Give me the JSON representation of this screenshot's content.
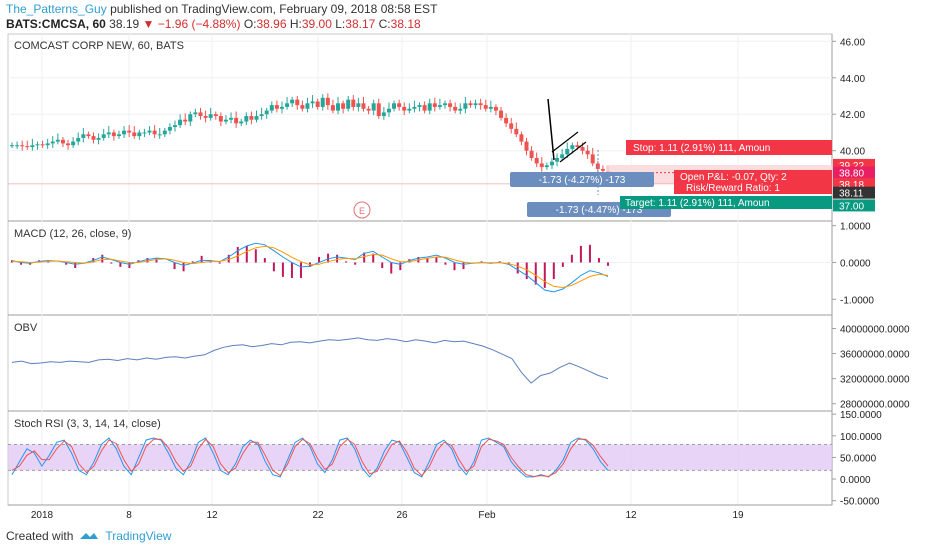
{
  "header": {
    "author": "The_Patterns_Guy",
    "published": "published on TradingView.com, February 09, 2018 08:58 EST",
    "symbol": "BATS:CMCSA, 60",
    "last": "38.19",
    "change": "−1.96 (−4.88%)",
    "open_label": "O:",
    "open": "38.96",
    "high_label": "H:",
    "high": "39.00",
    "low_label": "L:",
    "low": "38.17",
    "close_label": "C:",
    "close": "38.18"
  },
  "footer": {
    "created_with": "Created with",
    "brand": "TradingView"
  },
  "colors": {
    "up": "#26a69a",
    "down": "#ef5350",
    "macd": "#2196f3",
    "signal": "#ff9800",
    "obv": "#5b7fbf",
    "stoch_k": "#2196f3",
    "stoch_d": "#ef5350",
    "stoch_band": "#e1c9f5",
    "stop": "#f23645",
    "target": "#089981",
    "label_blue": "#6c8ebf"
  },
  "chart_data": [
    {
      "type": "candlestick",
      "title": "COMCAST CORP NEW, 60, BATS",
      "ylim": [
        36.2,
        46.4
      ],
      "yticks": [
        "46.00",
        "44.00",
        "42.00",
        "40.00"
      ],
      "x_ticks": [
        "2018",
        "8",
        "12",
        "22",
        "26",
        "Feb",
        "12",
        "19"
      ],
      "close_path": [
        40.3,
        40.3,
        40.25,
        40.2,
        40.3,
        40.35,
        40.3,
        40.4,
        40.5,
        40.6,
        40.4,
        40.3,
        40.5,
        40.7,
        40.9,
        40.8,
        40.6,
        40.7,
        40.9,
        41.0,
        40.8,
        40.9,
        41.1,
        41.0,
        40.8,
        41.0,
        41.0,
        41.1,
        40.9,
        40.9,
        41.1,
        41.3,
        41.4,
        41.7,
        41.6,
        42.0,
        42.1,
        41.9,
        41.8,
        42.0,
        41.9,
        41.6,
        41.7,
        41.8,
        41.5,
        41.6,
        41.9,
        41.7,
        41.9,
        42.0,
        42.2,
        42.5,
        42.3,
        42.4,
        42.6,
        42.8,
        42.5,
        42.3,
        42.6,
        42.7,
        42.4,
        42.9,
        42.5,
        42.2,
        42.6,
        42.3,
        42.8,
        42.4,
        42.6,
        42.3,
        42.2,
        42.6,
        41.9,
        42.1,
        42.3,
        42.6,
        42.4,
        42.2,
        42.3,
        42.4,
        42.5,
        42.2,
        42.6,
        42.4,
        42.5,
        42.6,
        42.4,
        42.2,
        42.3,
        42.6,
        42.5,
        42.6,
        42.5,
        42.3,
        42.4,
        42.2,
        41.8,
        41.5,
        41.2,
        40.9,
        40.5,
        40.0,
        39.6,
        39.3,
        39.1,
        39.2,
        39.4,
        39.6,
        39.8,
        40.1,
        40.3,
        40.2,
        40.0,
        39.8,
        39.3,
        39.0,
        38.9,
        38.4
      ],
      "annotations": {
        "stop": "Stop: 1.11 (2.91%) 111, Amoun",
        "open_pl": "Open P&L: -0.07, Qty: 2",
        "risk_reward": "Risk/Reward Ratio: 1",
        "target": "Target: 1.11 (2.91%) 111, Amoun",
        "measure_1": "-1.73 (-4.27%) -173",
        "measure_2": "-1.73 (-4.47%) -173",
        "earnings": "E"
      },
      "price_badges": [
        "39.22",
        "38.80",
        "38.18",
        "38.11",
        "37.00"
      ]
    },
    {
      "type": "line",
      "title": "MACD (12, 26, close, 9)",
      "ylim": [
        -1.4,
        1.1
      ],
      "yticks": [
        "1.0000",
        "0.0000",
        "-1.0000"
      ],
      "series": [
        {
          "values": [
            0.05,
            0.0,
            -0.02,
            0.03,
            0.05,
            0.04,
            0.0,
            -0.05,
            -0.02,
            0.06,
            0.15,
            0.08,
            0.0,
            -0.05,
            0.02,
            0.08,
            0.12,
            0.1,
            0.0,
            -0.08,
            -0.02,
            0.06,
            0.05,
            0.02,
            0.15,
            0.32,
            0.45,
            0.52,
            0.48,
            0.32,
            0.15,
            0.0,
            -0.12,
            -0.1,
            0.0,
            0.1,
            0.15,
            0.12,
            0.08,
            0.25,
            0.3,
            0.15,
            0.0,
            -0.05,
            0.05,
            0.12,
            0.15,
            0.2,
            0.12,
            0.0,
            -0.05,
            -0.02,
            0.0,
            -0.02,
            0.0,
            -0.05,
            -0.2,
            -0.35,
            -0.55,
            -0.75,
            -0.8,
            -0.72,
            -0.55,
            -0.35,
            -0.22,
            -0.28,
            -0.38
          ]
        },
        {
          "values": [
            0.03,
            0.02,
            0.0,
            0.01,
            0.03,
            0.04,
            0.02,
            0.0,
            -0.02,
            0.02,
            0.08,
            0.09,
            0.04,
            0.0,
            0.0,
            0.04,
            0.08,
            0.1,
            0.06,
            0.0,
            -0.03,
            0.0,
            0.03,
            0.03,
            0.08,
            0.18,
            0.3,
            0.4,
            0.44,
            0.4,
            0.28,
            0.14,
            0.02,
            -0.06,
            -0.05,
            0.02,
            0.08,
            0.11,
            0.1,
            0.16,
            0.22,
            0.2,
            0.1,
            0.02,
            0.02,
            0.07,
            0.11,
            0.15,
            0.14,
            0.07,
            0.01,
            -0.02,
            -0.01,
            -0.01,
            -0.01,
            -0.03,
            -0.1,
            -0.2,
            -0.35,
            -0.52,
            -0.65,
            -0.68,
            -0.62,
            -0.5,
            -0.38,
            -0.32,
            -0.35
          ]
        }
      ]
    },
    {
      "type": "line",
      "title": "OBV",
      "ylim": [
        27000000,
        42000000
      ],
      "yticks": [
        "40000000.0000",
        "36000000.0000",
        "32000000.0000",
        "28000000.0000"
      ],
      "series": [
        {
          "values": [
            34.6,
            34.8,
            34.4,
            34.5,
            34.7,
            34.6,
            34.8,
            34.7,
            34.6,
            35.0,
            35.1,
            34.9,
            35.2,
            35.0,
            35.3,
            35.1,
            35.4,
            35.5,
            35.3,
            35.6,
            35.8,
            36.5,
            37.0,
            37.3,
            37.4,
            37.1,
            37.3,
            37.6,
            37.4,
            37.8,
            37.9,
            37.7,
            38.0,
            38.2,
            38.1,
            38.3,
            38.5,
            38.2,
            38.1,
            38.4,
            38.2,
            37.9,
            38.2,
            38.0,
            37.7,
            38.1,
            37.9,
            38.0,
            37.6,
            37.2,
            36.6,
            35.9,
            35.2,
            33.0,
            31.3,
            32.5,
            32.9,
            33.8,
            34.5,
            33.9,
            33.2,
            32.5,
            32.0
          ]
        }
      ]
    },
    {
      "type": "line",
      "title": "Stoch RSI (3, 3, 14, 14, close)",
      "ylim": [
        -60,
        155
      ],
      "yticks": [
        "150.0000",
        "100.0000",
        "50.0000",
        "0.0000",
        "-50.0000"
      ],
      "band": [
        20,
        80
      ],
      "series": [
        {
          "values": [
            10,
            40,
            70,
            60,
            30,
            55,
            85,
            90,
            60,
            20,
            10,
            40,
            80,
            95,
            70,
            30,
            10,
            50,
            90,
            95,
            90,
            60,
            25,
            10,
            40,
            85,
            95,
            60,
            20,
            10,
            35,
            75,
            90,
            80,
            40,
            10,
            5,
            45,
            85,
            95,
            75,
            35,
            15,
            45,
            90,
            95,
            70,
            25,
            5,
            25,
            65,
            90,
            85,
            50,
            15,
            5,
            40,
            80,
            90,
            70,
            30,
            10,
            40,
            90,
            95,
            85,
            75,
            40,
            20,
            5,
            5,
            10,
            5,
            20,
            45,
            85,
            95,
            90,
            70,
            40,
            20
          ]
        },
        {
          "values": [
            20,
            30,
            55,
            65,
            45,
            45,
            70,
            88,
            75,
            35,
            15,
            30,
            65,
            90,
            82,
            45,
            18,
            35,
            75,
            92,
            92,
            72,
            40,
            18,
            30,
            70,
            92,
            75,
            35,
            15,
            25,
            60,
            85,
            85,
            55,
            20,
            8,
            35,
            75,
            92,
            82,
            48,
            22,
            35,
            75,
            92,
            80,
            40,
            12,
            18,
            50,
            80,
            88,
            62,
            25,
            8,
            28,
            65,
            85,
            78,
            45,
            18,
            30,
            75,
            92,
            88,
            80,
            50,
            28,
            10,
            6,
            8,
            6,
            15,
            35,
            70,
            92,
            92,
            78,
            52,
            30
          ]
        }
      ]
    }
  ]
}
